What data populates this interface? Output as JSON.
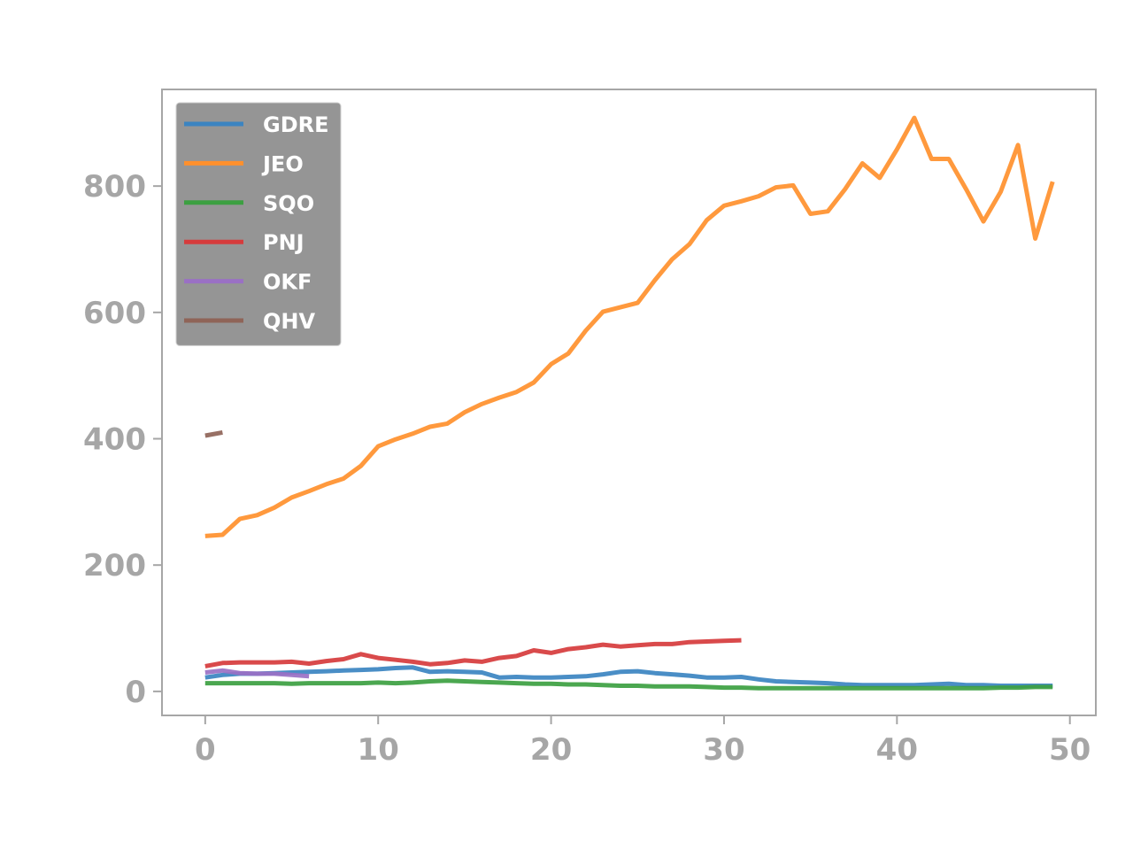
{
  "chart_data": {
    "type": "line",
    "title": "",
    "xlabel": "",
    "ylabel": "",
    "xlim": [
      -2.5,
      51.5
    ],
    "ylim": [
      -38,
      953
    ],
    "xticks": [
      0,
      10,
      20,
      30,
      40,
      50
    ],
    "yticks": [
      0,
      200,
      400,
      600,
      800
    ],
    "grid": false,
    "legend_position": "top-left",
    "series": [
      {
        "name": "GDRE",
        "color": "#3b84c1",
        "x": [
          0,
          1,
          2,
          3,
          4,
          5,
          6,
          7,
          8,
          9,
          10,
          11,
          12,
          13,
          14,
          15,
          16,
          17,
          18,
          19,
          20,
          21,
          22,
          23,
          24,
          25,
          26,
          27,
          28,
          29,
          30,
          31,
          32,
          33,
          34,
          35,
          36,
          37,
          38,
          39,
          40,
          41,
          42,
          43,
          44,
          45,
          46,
          47,
          48,
          49
        ],
        "y": [
          22,
          26,
          28,
          28,
          29,
          30,
          31,
          32,
          33,
          34,
          35,
          37,
          38,
          31,
          32,
          31,
          30,
          22,
          23,
          22,
          22,
          23,
          24,
          27,
          31,
          32,
          29,
          27,
          25,
          22,
          22,
          23,
          19,
          16,
          15,
          14,
          13,
          11,
          10,
          10,
          10,
          10,
          11,
          12,
          10,
          10,
          9,
          9,
          9,
          9
        ]
      },
      {
        "name": "JEO",
        "color": "#ff902c",
        "x": [
          0,
          1,
          2,
          3,
          4,
          5,
          6,
          7,
          8,
          9,
          10,
          11,
          12,
          13,
          14,
          15,
          16,
          17,
          18,
          19,
          20,
          21,
          22,
          23,
          24,
          25,
          26,
          27,
          28,
          29,
          30,
          31,
          32,
          33,
          34,
          35,
          36,
          37,
          38,
          39,
          40,
          41,
          42,
          43,
          44,
          45,
          46,
          47,
          48,
          49
        ],
        "y": [
          246,
          248,
          273,
          279,
          291,
          307,
          317,
          328,
          337,
          357,
          388,
          399,
          408,
          419,
          424,
          442,
          455,
          465,
          474,
          489,
          518,
          535,
          571,
          601,
          608,
          615,
          651,
          684,
          708,
          746,
          769,
          776,
          784,
          798,
          801,
          756,
          760,
          795,
          836,
          813,
          858,
          908,
          843,
          843,
          795,
          744,
          791,
          865,
          717,
          807
        ]
      },
      {
        "name": "SQO",
        "color": "#3ca041",
        "x": [
          0,
          1,
          2,
          3,
          4,
          5,
          6,
          7,
          8,
          9,
          10,
          11,
          12,
          13,
          14,
          15,
          16,
          17,
          18,
          19,
          20,
          21,
          22,
          23,
          24,
          25,
          26,
          27,
          28,
          29,
          30,
          31,
          32,
          33,
          34,
          35,
          36,
          37,
          38,
          39,
          40,
          41,
          42,
          43,
          44,
          45,
          46,
          47,
          48,
          49
        ],
        "y": [
          13,
          13,
          13,
          13,
          13,
          12,
          13,
          13,
          13,
          13,
          14,
          13,
          14,
          16,
          17,
          16,
          15,
          14,
          13,
          12,
          12,
          11,
          11,
          10,
          9,
          9,
          8,
          8,
          8,
          7,
          6,
          6,
          5,
          5,
          5,
          5,
          5,
          5,
          5,
          5,
          5,
          5,
          5,
          5,
          5,
          5,
          6,
          6,
          7,
          7
        ]
      },
      {
        "name": "PNJ",
        "color": "#d63b3c",
        "x": [
          0,
          1,
          2,
          3,
          4,
          5,
          6,
          7,
          8,
          9,
          10,
          11,
          12,
          13,
          14,
          15,
          16,
          17,
          18,
          19,
          20,
          21,
          22,
          23,
          24,
          25,
          26,
          27,
          28,
          29,
          30,
          31
        ],
        "y": [
          40,
          45,
          46,
          46,
          46,
          47,
          44,
          48,
          51,
          59,
          53,
          50,
          47,
          43,
          45,
          49,
          47,
          53,
          56,
          65,
          61,
          67,
          70,
          74,
          71,
          73,
          75,
          75,
          78,
          79,
          80,
          81
        ]
      },
      {
        "name": "OKF",
        "color": "#9a70c4",
        "x": [
          0,
          1,
          2,
          3,
          4,
          5,
          6
        ],
        "y": [
          30,
          33,
          29,
          28,
          28,
          26,
          24
        ]
      },
      {
        "name": "QHV",
        "color": "#8f6458",
        "x": [
          0,
          1
        ],
        "y": [
          405,
          410
        ]
      }
    ]
  }
}
